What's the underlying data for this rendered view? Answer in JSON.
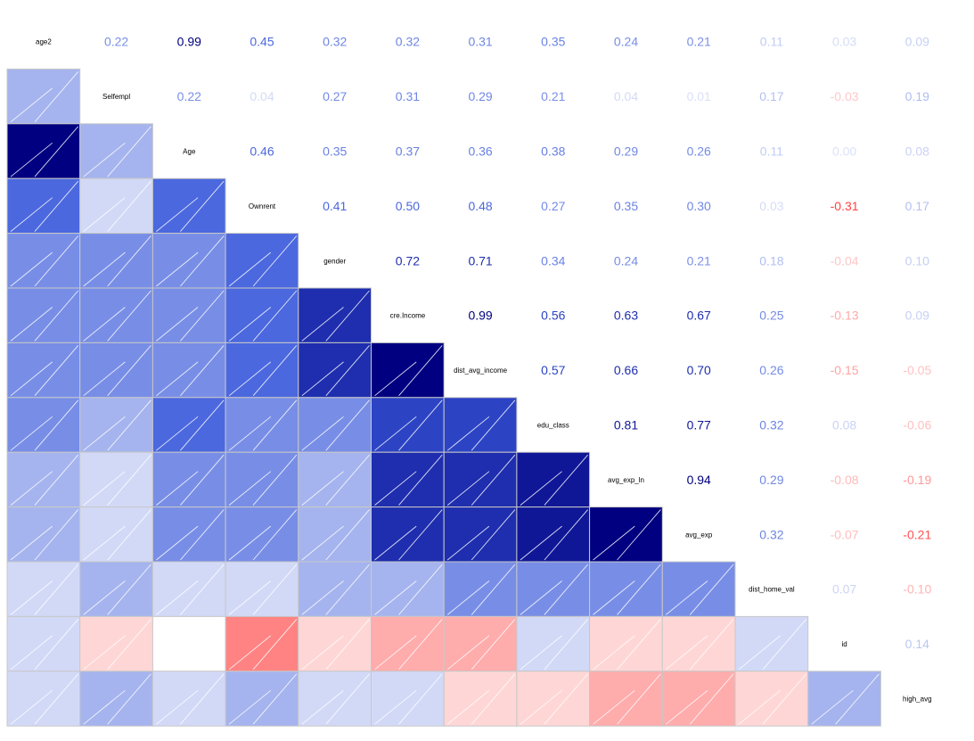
{
  "chart_data": {
    "type": "heatmap",
    "title": "",
    "xlabel": "",
    "ylabel": "",
    "variables": [
      "age2",
      "Selfempl",
      "Age",
      "Ownrent",
      "gender",
      "cre.Income",
      "dist_avg_income",
      "edu_class",
      "avg_exp_ln",
      "avg_exp",
      "dist_home_val",
      "id",
      "high_avg"
    ],
    "matrix": [
      [
        1.0,
        0.22,
        0.99,
        0.45,
        0.32,
        0.32,
        0.31,
        0.35,
        0.24,
        0.21,
        0.11,
        0.03,
        0.09
      ],
      [
        0.22,
        1.0,
        0.22,
        0.04,
        0.27,
        0.31,
        0.29,
        0.21,
        0.04,
        0.01,
        0.17,
        -0.03,
        0.19
      ],
      [
        0.99,
        0.22,
        1.0,
        0.46,
        0.35,
        0.37,
        0.36,
        0.38,
        0.29,
        0.26,
        0.11,
        -0.0,
        0.08
      ],
      [
        0.45,
        0.04,
        0.46,
        1.0,
        0.41,
        0.5,
        0.48,
        0.27,
        0.35,
        0.3,
        0.03,
        -0.31,
        0.17
      ],
      [
        0.32,
        0.27,
        0.35,
        0.41,
        1.0,
        0.72,
        0.71,
        0.34,
        0.24,
        0.21,
        0.18,
        -0.04,
        0.1
      ],
      [
        0.32,
        0.31,
        0.37,
        0.5,
        0.72,
        1.0,
        0.99,
        0.56,
        0.63,
        0.67,
        0.25,
        -0.13,
        0.09
      ],
      [
        0.31,
        0.29,
        0.36,
        0.48,
        0.71,
        0.99,
        1.0,
        0.57,
        0.66,
        0.7,
        0.26,
        -0.15,
        -0.05
      ],
      [
        0.35,
        0.21,
        0.38,
        0.27,
        0.34,
        0.56,
        0.57,
        1.0,
        0.81,
        0.77,
        0.32,
        0.08,
        -0.06
      ],
      [
        0.24,
        0.04,
        0.29,
        0.35,
        0.24,
        0.63,
        0.66,
        0.81,
        1.0,
        0.94,
        0.29,
        -0.08,
        -0.19
      ],
      [
        0.21,
        0.01,
        0.26,
        0.3,
        0.21,
        0.67,
        0.7,
        0.77,
        0.94,
        1.0,
        0.32,
        -0.07,
        -0.21
      ],
      [
        0.11,
        0.17,
        0.11,
        0.03,
        0.18,
        0.25,
        0.26,
        0.32,
        0.29,
        0.32,
        1.0,
        0.07,
        -0.1
      ],
      [
        0.03,
        -0.03,
        -0.0,
        -0.31,
        -0.04,
        -0.13,
        -0.15,
        0.08,
        -0.08,
        -0.07,
        0.07,
        1.0,
        0.14
      ],
      [
        0.09,
        0.19,
        0.08,
        0.17,
        0.1,
        0.09,
        -0.05,
        -0.06,
        -0.19,
        -0.21,
        -0.1,
        0.14,
        1.0
      ]
    ],
    "lower_panel": "shade",
    "upper_panel": "number",
    "diagonal": "labels",
    "legend": "none",
    "colors": {
      "negative": "#ff0000",
      "neutral": "#ffffff",
      "positive": "#000080",
      "positive_mid": "#3b5bdb",
      "grid_line": "#c8c8c8",
      "hatch": "#ffffff"
    }
  }
}
